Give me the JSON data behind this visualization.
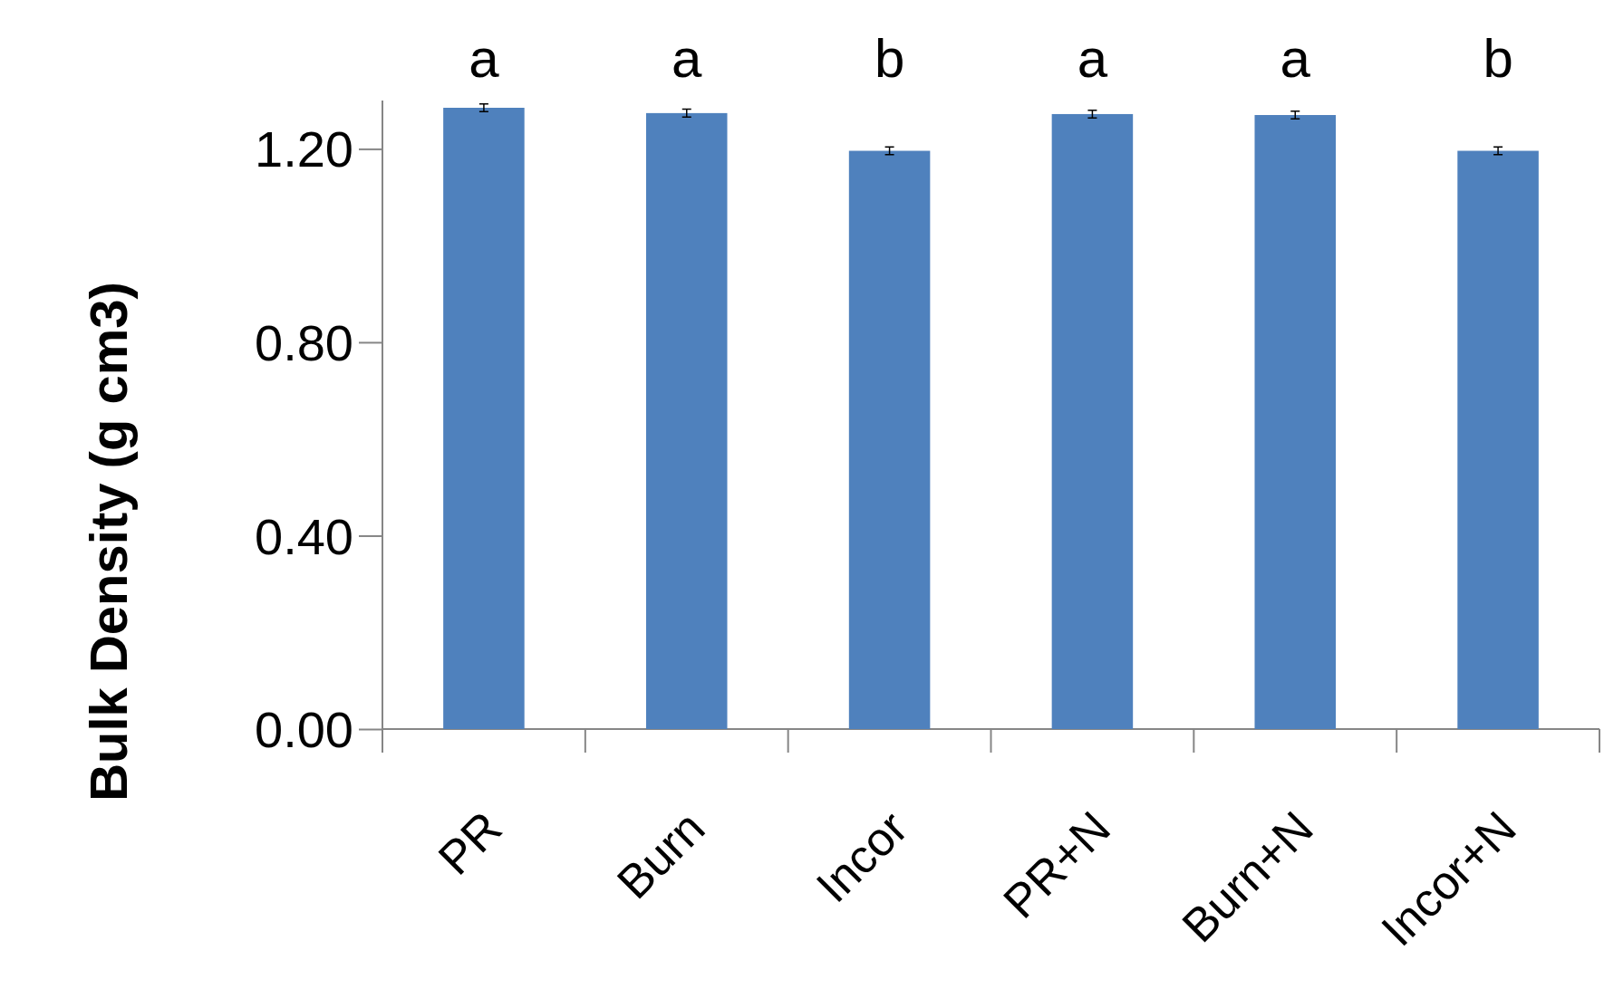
{
  "chart_data": {
    "type": "bar",
    "ylabel": "Bulk Density (g cm3)",
    "categories": [
      "PR",
      "Burn",
      "Incor",
      "PR+N",
      "Burn+N",
      "Incor+N"
    ],
    "values": [
      1.285,
      1.274,
      1.196,
      1.272,
      1.27,
      1.196
    ],
    "errors": [
      0.008,
      0.008,
      0.008,
      0.008,
      0.008,
      0.008
    ],
    "color": "#4f81bd",
    "ylim": [
      0,
      1.3
    ],
    "yticks": [
      {
        "value": 0,
        "label": "0.00"
      },
      {
        "value": 0.4,
        "label": "0.40"
      },
      {
        "value": 0.8,
        "label": "0.80"
      },
      {
        "value": 1.2,
        "label": "1.20"
      }
    ],
    "grid": false,
    "annotations": [
      "a",
      "a",
      "b",
      "a",
      "a",
      "b"
    ]
  }
}
